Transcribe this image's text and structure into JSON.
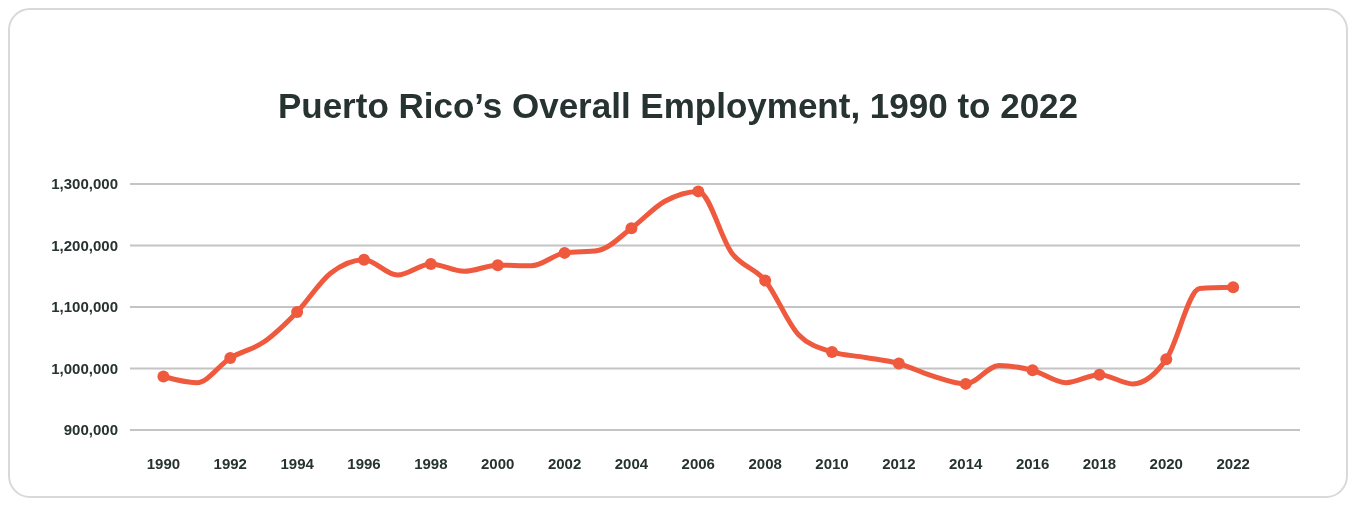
{
  "chart_data": {
    "type": "line",
    "title": "Puerto Rico’s Overall Employment, 1990 to 2022",
    "x": [
      1990,
      1991,
      1992,
      1993,
      1994,
      1995,
      1996,
      1997,
      1998,
      1999,
      2000,
      2001,
      2002,
      2003,
      2004,
      2005,
      2006,
      2007,
      2008,
      2009,
      2010,
      2011,
      2012,
      2013,
      2014,
      2015,
      2016,
      2017,
      2018,
      2019,
      2020,
      2021,
      2022
    ],
    "series": [
      {
        "color": "#ef5a3e",
        "values": [
          987000,
          977000,
          1017000,
          1043000,
          1092000,
          1155000,
          1177000,
          1152000,
          1170000,
          1158000,
          1168000,
          1167000,
          1188000,
          1192000,
          1228000,
          1272000,
          1288000,
          1188000,
          1143000,
          1055000,
          1027000,
          1018000,
          1008000,
          988000,
          975000,
          1005000,
          997000,
          977000,
          990000,
          975000,
          1015000,
          1130000,
          1132000
        ]
      }
    ],
    "xlim": [
      1989,
      2024
    ],
    "xticks": [
      1990,
      1992,
      1994,
      1996,
      1998,
      2000,
      2002,
      2004,
      2006,
      2008,
      2010,
      2012,
      2014,
      2016,
      2018,
      2020,
      2022
    ],
    "ylim": [
      900000,
      1300000
    ],
    "yticks": [
      {
        "value": 900000,
        "label": "900,000"
      },
      {
        "value": 1000000,
        "label": "1,000,000"
      },
      {
        "value": 1100000,
        "label": "1,100,000"
      },
      {
        "value": 1200000,
        "label": "1,200,000"
      },
      {
        "value": 1300000,
        "label": "1,300,000"
      }
    ],
    "grid": "y",
    "marker": "circle",
    "line_style": "solid"
  }
}
